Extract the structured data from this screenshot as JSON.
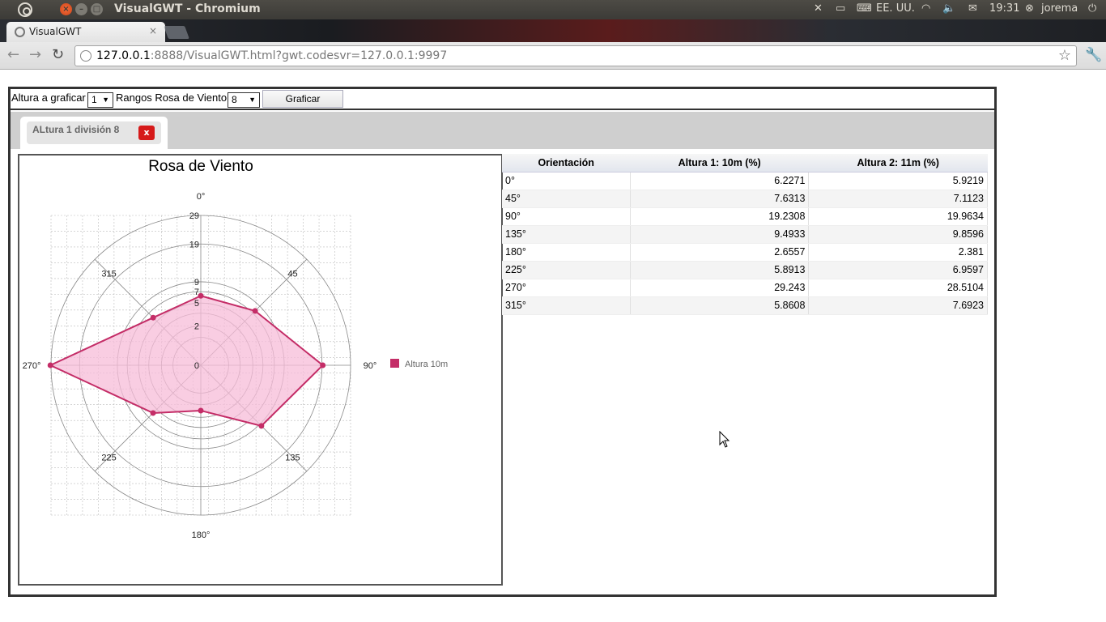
{
  "os_panel": {
    "window_title": "VisualGWT - Chromium",
    "keyboard_layout": "EE. UU.",
    "clock": "19:31",
    "user": "jorema"
  },
  "browser": {
    "tab_title": "VisualGWT",
    "tab_close": "×",
    "url_host": "127.0.0.1",
    "url_rest": ":8888/VisualGWT.html?gwt.codesvr=127.0.0.1:9997"
  },
  "controls": {
    "altura_label": "Altura a graficar",
    "altura_value": "1",
    "rangos_label": "Rangos Rosa de Viento",
    "rangos_value": "8",
    "graficar_label": "Graficar"
  },
  "chart_tab": {
    "label": "ALtura 1 división 8",
    "close_label": "x"
  },
  "chart_data": {
    "type": "radar",
    "title": "Rosa de Viento",
    "categories": [
      "0°",
      "45",
      "90°",
      "135",
      "180°",
      "225",
      "270°",
      "315"
    ],
    "radial_ticks": [
      0,
      2,
      5,
      7,
      9,
      19,
      29
    ],
    "radial_max": 29,
    "series": [
      {
        "name": "Altura 10m",
        "color": "#c42d67",
        "fill": "#f7bcd8",
        "values": [
          6.2271,
          7.6313,
          19.2308,
          9.4933,
          2.6557,
          5.8913,
          29.243,
          5.8608
        ]
      }
    ],
    "legend_position": "right",
    "grid": true
  },
  "table": {
    "headers": [
      "Orientación",
      "Altura 1: 10m (%)",
      "Altura 2: 11m (%)"
    ],
    "rows": [
      [
        "0°",
        "6.2271",
        "5.9219"
      ],
      [
        "45°",
        "7.6313",
        "7.1123"
      ],
      [
        "90°",
        "19.2308",
        "19.9634"
      ],
      [
        "135°",
        "9.4933",
        "9.8596"
      ],
      [
        "180°",
        "2.6557",
        "2.381"
      ],
      [
        "225°",
        "5.8913",
        "6.9597"
      ],
      [
        "270°",
        "29.243",
        "28.5104"
      ],
      [
        "315°",
        "5.8608",
        "7.6923"
      ]
    ]
  }
}
